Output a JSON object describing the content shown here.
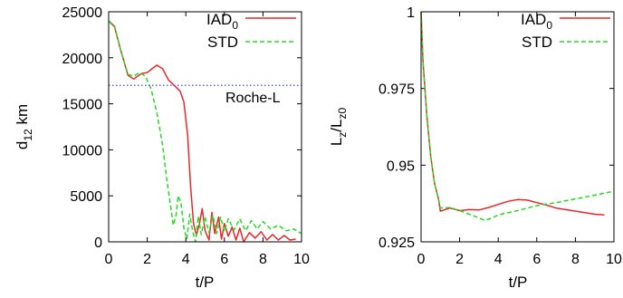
{
  "chart_data": [
    {
      "type": "line",
      "xlabel": "t/P",
      "ylabel_main": "d",
      "ylabel_sub": "12",
      "ylabel_unit": " km",
      "xlim": [
        0,
        10
      ],
      "ylim": [
        0,
        25000
      ],
      "xticks": [
        0,
        2,
        4,
        6,
        8,
        10
      ],
      "yticks": [
        0,
        5000,
        10000,
        15000,
        20000,
        25000
      ],
      "ytick_labels": [
        "0",
        "5000",
        "10000",
        "15000",
        "20000",
        "25000"
      ],
      "legend_position": "top-right",
      "grid": false,
      "series": [
        {
          "name": "IAD",
          "name_sub": "0",
          "color": "#e8272a",
          "dash": "solid",
          "x": [
            0,
            0.3,
            0.6,
            1.0,
            1.3,
            1.7,
            2.0,
            2.3,
            2.5,
            2.8,
            3.1,
            3.4,
            3.7,
            3.9,
            4.1,
            4.25,
            4.4,
            4.55,
            4.7,
            4.85,
            5.0,
            5.2,
            5.35,
            5.5,
            5.7,
            5.85,
            6.0,
            6.2,
            6.4,
            6.6,
            6.8,
            7.0,
            7.3,
            7.6,
            7.9,
            8.2,
            8.5,
            8.8,
            9.1,
            9.4,
            9.7
          ],
          "y": [
            24000,
            23400,
            21000,
            18100,
            17700,
            18300,
            18400,
            18900,
            19200,
            18800,
            17600,
            17000,
            16400,
            15200,
            11500,
            6000,
            2000,
            700,
            1900,
            3600,
            1200,
            200,
            3200,
            900,
            2700,
            300,
            2000,
            600,
            1600,
            200,
            1500,
            0,
            1000,
            400,
            1100,
            200,
            800,
            200,
            700,
            200,
            300
          ]
        },
        {
          "name": "STD",
          "color": "#22dd22",
          "dash": "dashed",
          "x": [
            0,
            0.3,
            0.6,
            1.0,
            1.3,
            1.6,
            1.9,
            2.2,
            2.5,
            2.8,
            3.0,
            3.2,
            3.35,
            3.5,
            3.6,
            3.75,
            3.9,
            4.05,
            4.2,
            4.35,
            4.5,
            4.65,
            4.8,
            5.0,
            5.2,
            5.4,
            5.6,
            5.8,
            6.0,
            6.2,
            6.5,
            6.8,
            7.1,
            7.4,
            7.7,
            8.0,
            8.4,
            8.8,
            9.2,
            9.6,
            10.0
          ],
          "y": [
            24000,
            23500,
            21000,
            18200,
            18000,
            18400,
            18000,
            16600,
            14000,
            10500,
            7000,
            4000,
            1800,
            3000,
            5000,
            4200,
            1500,
            300,
            3000,
            1200,
            0,
            2800,
            800,
            2700,
            1000,
            2900,
            900,
            2700,
            1100,
            2500,
            1300,
            2500,
            1200,
            2300,
            1400,
            2200,
            1400,
            1800,
            1200,
            1400,
            900
          ]
        }
      ],
      "reference_line": {
        "y": 17000,
        "label": "Roche-L",
        "color": "#4a4af0"
      }
    },
    {
      "type": "line",
      "xlabel": "t/P",
      "ylabel_main": "L",
      "ylabel_sub1": "z",
      "ylabel_sep": "/L",
      "ylabel_sub2": "z0",
      "xlim": [
        0,
        10
      ],
      "ylim": [
        0.925,
        1.0
      ],
      "xticks": [
        0,
        2,
        4,
        6,
        8,
        10
      ],
      "yticks": [
        0.925,
        0.95,
        0.975,
        1.0
      ],
      "ytick_labels": [
        "0.925",
        "0.95",
        "0.975",
        "1"
      ],
      "legend_position": "top-right",
      "grid": false,
      "series": [
        {
          "name": "IAD",
          "name_sub": "0",
          "color": "#e8272a",
          "dash": "solid",
          "x": [
            0,
            0.1,
            0.3,
            0.5,
            0.7,
            0.9,
            1.0,
            1.5,
            2.0,
            2.5,
            3.0,
            3.5,
            4.0,
            4.5,
            5.0,
            5.5,
            6.0,
            6.5,
            7.0,
            7.5,
            8.0,
            8.5,
            9.0,
            9.5
          ],
          "y": [
            1.0,
            0.984,
            0.966,
            0.953,
            0.944,
            0.939,
            0.935,
            0.936,
            0.9352,
            0.9355,
            0.9354,
            0.9362,
            0.9372,
            0.9382,
            0.9388,
            0.9386,
            0.9378,
            0.937,
            0.936,
            0.9355,
            0.935,
            0.9345,
            0.934,
            0.9338
          ]
        },
        {
          "name": "STD",
          "color": "#22dd22",
          "dash": "dashed",
          "x": [
            0,
            0.1,
            0.3,
            0.5,
            0.7,
            0.9,
            1.0,
            1.5,
            2.0,
            2.5,
            3.0,
            3.3,
            3.7,
            4.0,
            5.0,
            6.0,
            7.0,
            8.0,
            9.0,
            10.0
          ],
          "y": [
            1.0,
            0.984,
            0.966,
            0.953,
            0.944,
            0.939,
            0.936,
            0.9362,
            0.9352,
            0.934,
            0.9328,
            0.932,
            0.9328,
            0.9338,
            0.9352,
            0.9368,
            0.9378,
            0.939,
            0.9402,
            0.9415
          ]
        }
      ]
    }
  ]
}
